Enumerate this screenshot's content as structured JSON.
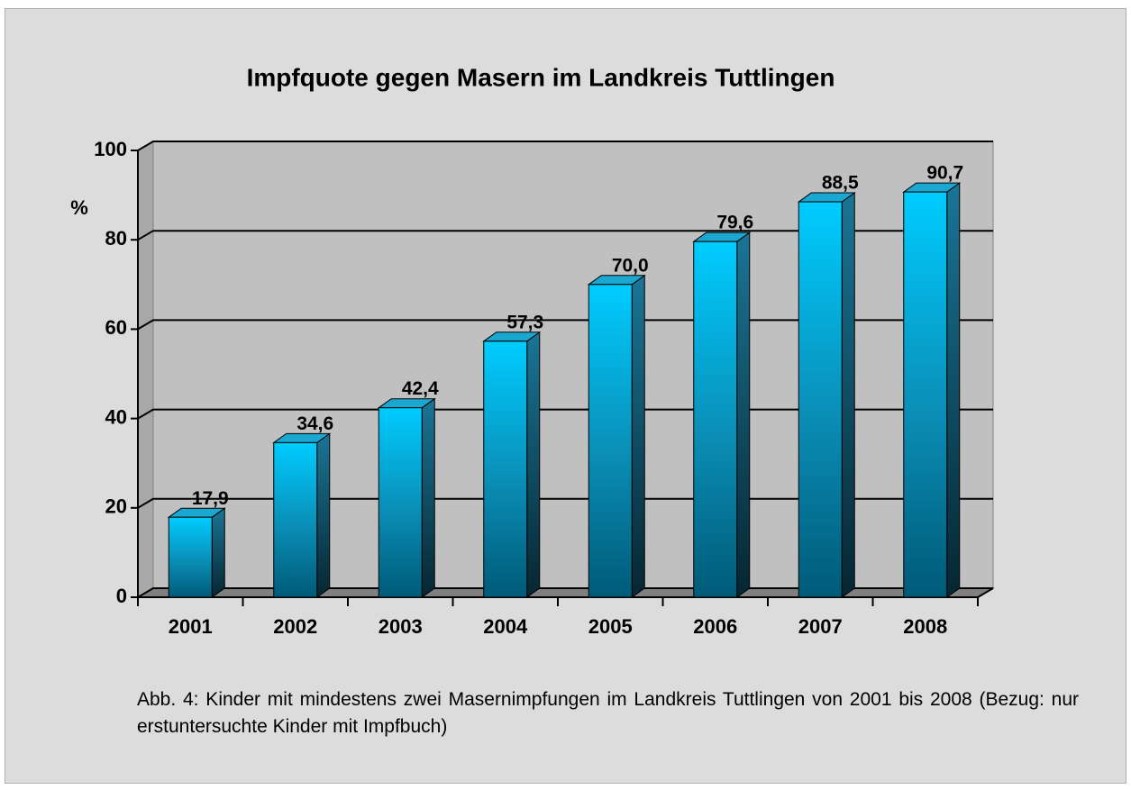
{
  "chart_data": {
    "type": "bar3d",
    "title": "Impfquote gegen Masern im Landkreis Tuttlingen",
    "y_label": "%",
    "categories": [
      "2001",
      "2002",
      "2003",
      "2004",
      "2005",
      "2006",
      "2007",
      "2008"
    ],
    "values": [
      17.9,
      34.6,
      42.4,
      57.3,
      70.0,
      79.6,
      88.5,
      90.7
    ],
    "value_labels": [
      "17,9",
      "34,6",
      "42,4",
      "57,3",
      "70,0",
      "79,6",
      "88,5",
      "90,7"
    ],
    "color": "#00ccff",
    "ylim": [
      0,
      100
    ],
    "yticks": [
      0,
      20,
      40,
      60,
      80,
      100
    ],
    "grid": true
  },
  "caption": "Abb. 4: Kinder mit mindestens zwei Masernimpfungen im Landkreis Tuttlingen von 2001 bis 2008 (Bezug: nur erstuntersuchte Kinder mit Impfbuch)"
}
